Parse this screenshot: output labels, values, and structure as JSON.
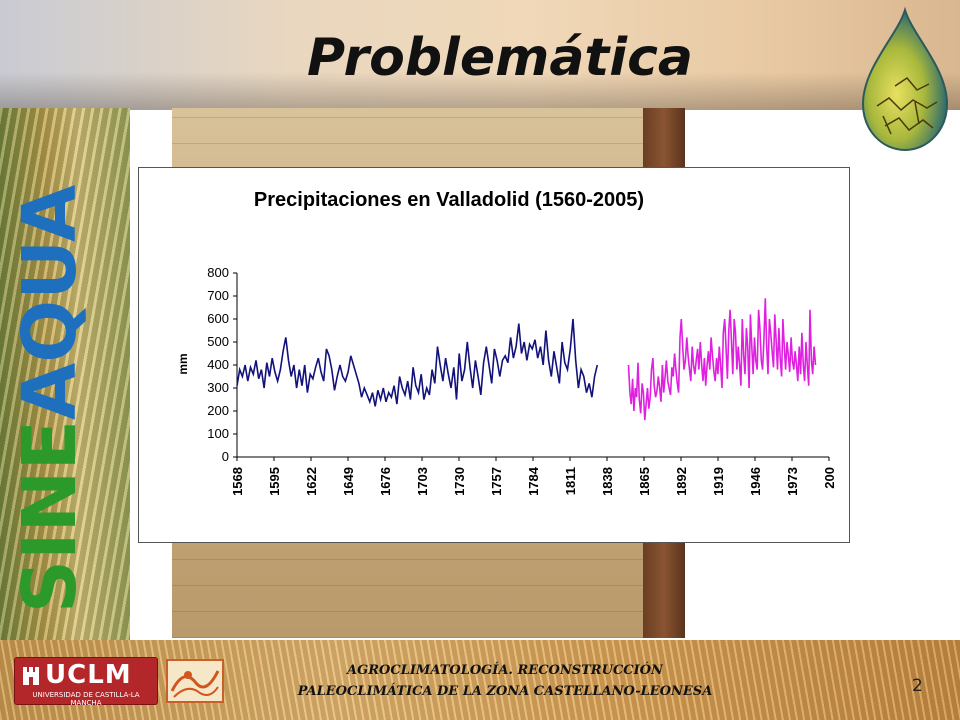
{
  "slide": {
    "title": "Problemática",
    "vertical_word_a": "SINE",
    "vertical_word_b": "AQUA",
    "page_number": "2"
  },
  "footer": {
    "line1": "AGROCLIMATOLOGÍA. RECONSTRUCCIÓN",
    "line2": "PALEOCLIMÁTICA DE LA ZONA CASTELLANO-LEONESA",
    "uclm_name": "UCLM",
    "uclm_sub": "UNIVERSIDAD DE CASTILLA-LA MANCHA"
  },
  "colors": {
    "title": "#111111",
    "sinea_blue": "#1f6fbf",
    "sinea_green": "#2b9a2b",
    "reconstructed_series": "#12127a",
    "observed_series": "#e020e0",
    "uclm_red": "#b3262a"
  },
  "icons": [
    "water-drop-cracked-earth-icon",
    "uclm-tower-icon",
    "institution-logo-icon"
  ],
  "chart_data": {
    "type": "line",
    "title": "Precipitaciones en Valladolid (1560-2005)",
    "ylabel": "mm",
    "xlabel": "",
    "ylim": [
      0,
      800
    ],
    "yticks": [
      0,
      100,
      200,
      300,
      400,
      500,
      600,
      700,
      800
    ],
    "xlim": [
      1568,
      2005
    ],
    "xtick_labels": [
      "1568",
      "1595",
      "1622",
      "1649",
      "1676",
      "1703",
      "1730",
      "1757",
      "1784",
      "1811",
      "1838",
      "1865",
      "1892",
      "1919",
      "1946",
      "1973",
      "200"
    ],
    "grid": false,
    "legend": "none",
    "series": [
      {
        "x_start": 1568,
        "x_step": 2,
        "values": [
          310,
          380,
          350,
          400,
          330,
          390,
          360,
          420,
          340,
          380,
          300,
          410,
          350,
          430,
          370,
          330,
          380,
          460,
          520,
          420,
          350,
          400,
          300,
          380,
          310,
          400,
          280,
          360,
          340,
          390,
          430,
          370,
          330,
          470,
          440,
          380,
          290,
          350,
          400,
          350,
          330,
          370,
          440,
          400,
          360,
          320,
          260,
          300,
          270,
          240,
          280,
          220,
          290,
          250,
          300,
          240,
          280,
          260,
          310,
          230,
          350,
          300,
          270,
          330,
          250,
          390,
          310,
          280,
          360,
          250,
          300,
          270,
          380,
          320,
          480,
          400,
          330,
          430,
          360,
          300,
          390,
          250,
          450,
          330,
          380,
          500,
          390,
          300,
          420,
          350,
          270,
          410,
          480,
          400,
          320,
          470,
          420,
          350,
          420,
          440,
          410,
          520,
          430,
          480,
          580,
          450,
          500,
          420,
          490,
          470,
          510,
          430,
          480,
          400,
          550,
          420,
          350,
          460,
          390,
          320,
          500,
          410,
          380,
          470,
          600,
          420,
          300,
          380,
          350,
          280,
          320,
          260,
          350,
          400
        ]
      },
      {
        "x_start": 1857,
        "x_step": 1,
        "values": [
          400,
          280,
          230,
          340,
          200,
          300,
          260,
          410,
          250,
          190,
          320,
          280,
          160,
          230,
          300,
          210,
          260,
          380,
          430,
          310,
          260,
          290,
          350,
          300,
          240,
          400,
          280,
          350,
          420,
          330,
          300,
          270,
          390,
          350,
          450,
          380,
          320,
          280,
          520,
          600,
          480,
          380,
          420,
          520,
          440,
          380,
          330,
          480,
          400,
          360,
          420,
          470,
          380,
          500,
          400,
          330,
          430,
          310,
          400,
          460,
          380,
          520,
          440,
          370,
          330,
          430,
          360,
          480,
          400,
          300,
          540,
          600,
          480,
          340,
          550,
          640,
          500,
          360,
          600,
          540,
          380,
          480,
          400,
          310,
          600,
          440,
          360,
          560,
          480,
          300,
          620,
          480,
          360,
          520,
          420,
          380,
          640,
          560,
          420,
          380,
          520,
          690,
          480,
          360,
          600,
          540,
          460,
          390,
          620,
          500,
          380,
          560,
          430,
          350,
          600,
          480,
          380,
          500,
          440,
          370,
          520,
          420,
          380,
          460,
          400,
          330,
          480,
          360,
          540,
          400,
          330,
          500,
          400,
          310,
          640,
          420,
          360,
          480,
          400
        ]
      }
    ]
  }
}
